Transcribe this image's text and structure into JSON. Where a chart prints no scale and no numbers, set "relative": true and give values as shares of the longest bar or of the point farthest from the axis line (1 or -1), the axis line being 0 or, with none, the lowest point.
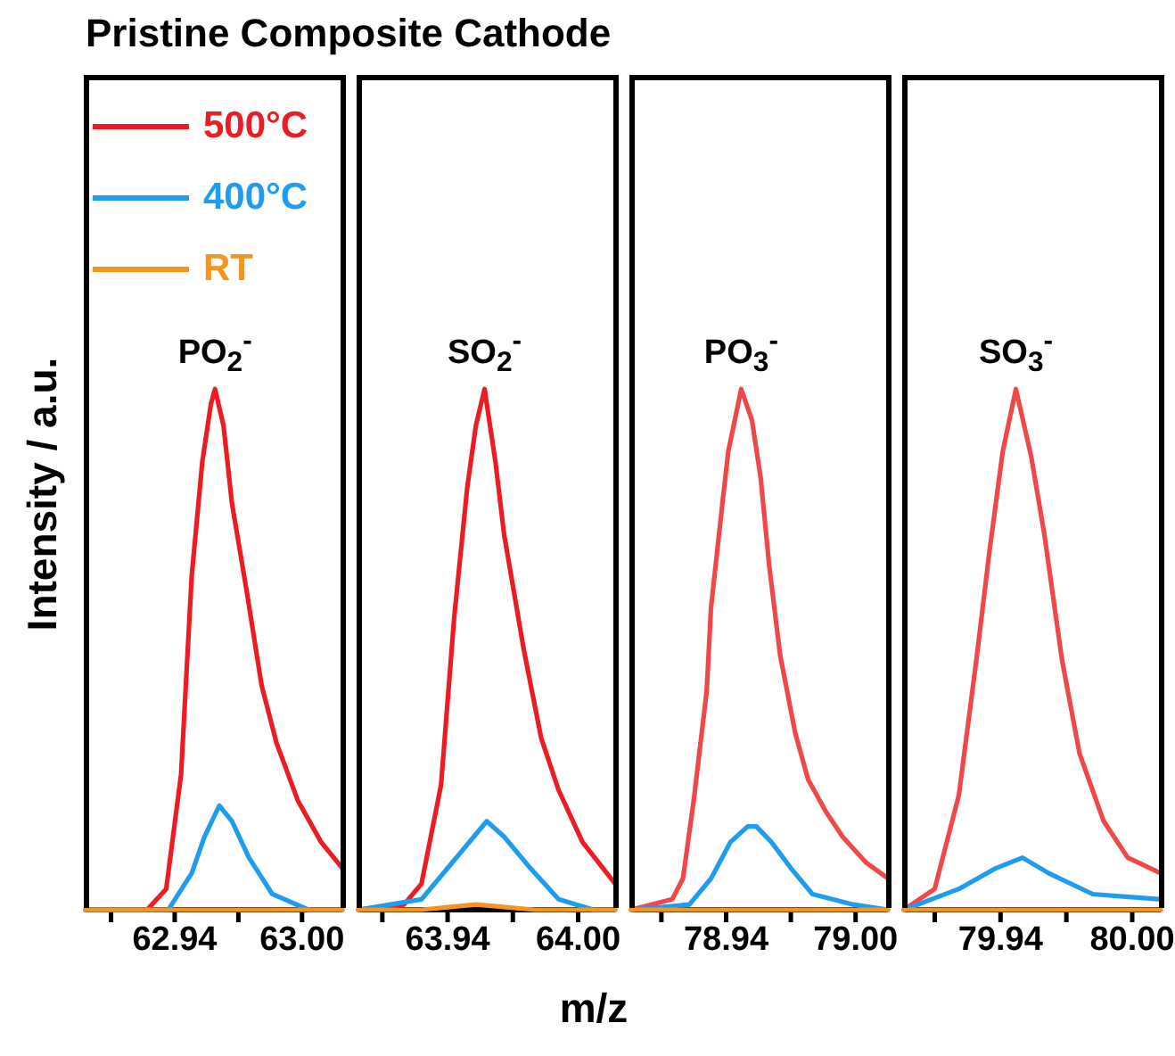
{
  "chart_data": [
    {
      "type": "line",
      "title": "Pristine Composite Cathode",
      "ylabel": "Intensity / a.u.",
      "relative": true,
      "tick_labels": "x",
      "legend": "top left",
      "xlim": [
        62.898,
        63.019
      ],
      "xticks": [
        {
          "value": 62.91,
          "label": null
        },
        62.94,
        {
          "value": 62.97,
          "label": null
        },
        {
          "value": 63,
          "label": "63.00"
        }
      ],
      "annotations": [
        {
          "text": "PO$_{2}$$^{-}$",
          "x": 62.959,
          "y": 1
        }
      ],
      "series": [
        {
          "name": "500°C",
          "color": "#ec1c24",
          "x": [
            62.898,
            62.927,
            62.936,
            62.943,
            62.948,
            62.953,
            62.957,
            62.959,
            62.963,
            62.967,
            62.974,
            62.981,
            62.988,
            62.998,
            63.009,
            63.019
          ],
          "values": [
            0,
            0,
            0.04,
            0.26,
            0.64,
            0.86,
            0.97,
            1,
            0.93,
            0.78,
            0.61,
            0.43,
            0.32,
            0.21,
            0.13,
            0.08
          ]
        },
        {
          "name": "400°C",
          "color": "#1e9cf0",
          "x": [
            62.898,
            62.937,
            62.948,
            62.954,
            62.961,
            62.967,
            62.975,
            62.986,
            63.003,
            63.019
          ],
          "values": [
            0,
            0,
            0.07,
            0.14,
            0.2,
            0.17,
            0.1,
            0.03,
            0,
            0
          ]
        },
        {
          "name": "RT",
          "color": "#f7941d",
          "x": [
            62.898,
            62.96,
            63.019
          ],
          "values": [
            0,
            0,
            0
          ]
        }
      ]
    },
    {
      "type": "line",
      "xlabel": "m/z",
      "relative": true,
      "tick_labels": "x",
      "xlim": [
        63.899,
        64.017
      ],
      "xticks": [
        {
          "value": 63.91,
          "label": null
        },
        63.94,
        {
          "value": 63.97,
          "label": null
        },
        {
          "value": 64,
          "label": "64.00"
        }
      ],
      "annotations": [
        {
          "text": "SO$_{2}$$^{-}$",
          "x": 63.957,
          "y": 1
        }
      ],
      "series": [
        {
          "color": "#ec1c24",
          "x": [
            63.899,
            63.92,
            63.928,
            63.937,
            63.943,
            63.949,
            63.953,
            63.957,
            63.962,
            63.966,
            63.975,
            63.983,
            63.991,
            64.002,
            64.017
          ],
          "values": [
            0,
            0.01,
            0.05,
            0.24,
            0.56,
            0.81,
            0.93,
            1,
            0.86,
            0.72,
            0.5,
            0.33,
            0.23,
            0.13,
            0.05
          ]
        },
        {
          "color": "#1e9cf0",
          "x": [
            63.899,
            63.928,
            63.942,
            63.952,
            63.958,
            63.966,
            63.978,
            63.991,
            64.007,
            64.017
          ],
          "values": [
            0,
            0.02,
            0.09,
            0.14,
            0.17,
            0.14,
            0.08,
            0.02,
            0,
            0
          ]
        },
        {
          "color": "#f7941d",
          "x": [
            63.899,
            63.928,
            63.953,
            63.98,
            64.017
          ],
          "values": [
            0,
            0,
            0.01,
            0,
            0
          ]
        }
      ]
    },
    {
      "type": "line",
      "relative": true,
      "tick_labels": "x",
      "xlim": [
        78.896,
        79.015
      ],
      "xticks": [
        {
          "value": 78.91,
          "label": null
        },
        78.94,
        {
          "value": 78.97,
          "label": null
        },
        {
          "value": 79,
          "label": "79.00"
        }
      ],
      "annotations": [
        {
          "text": "PO$_{3}$$^{-}$",
          "x": 78.947,
          "y": 1
        }
      ],
      "series": [
        {
          "color": "#f04848",
          "x": [
            78.896,
            78.915,
            78.92,
            78.925,
            78.931,
            78.933,
            78.938,
            78.941,
            78.945,
            78.947,
            78.952,
            78.956,
            78.96,
            78.965,
            78.972,
            78.978,
            78.986,
            78.994,
            79.005,
            79.015
          ],
          "values": [
            0,
            0.02,
            0.06,
            0.21,
            0.42,
            0.58,
            0.77,
            0.88,
            0.96,
            1,
            0.94,
            0.83,
            0.66,
            0.49,
            0.34,
            0.25,
            0.19,
            0.14,
            0.09,
            0.06
          ]
        },
        {
          "color": "#1e9cf0",
          "x": [
            78.896,
            78.923,
            78.933,
            78.942,
            78.95,
            78.954,
            78.961,
            78.97,
            78.98,
            78.999,
            79.015
          ],
          "values": [
            0,
            0.01,
            0.06,
            0.13,
            0.16,
            0.16,
            0.13,
            0.08,
            0.03,
            0.01,
            0
          ]
        },
        {
          "color": "#f7941d",
          "x": [
            78.896,
            78.95,
            79.015
          ],
          "values": [
            0,
            0,
            0
          ]
        }
      ]
    },
    {
      "type": "line",
      "relative": true,
      "tick_labels": "x",
      "xlim": [
        79.896,
        80.013
      ],
      "xticks": [
        {
          "value": 79.91,
          "label": null
        },
        79.94,
        {
          "value": 79.97,
          "label": null
        },
        {
          "value": 80,
          "label": "80.00"
        }
      ],
      "annotations": [
        {
          "text": "SO$_{3}$$^{-}$",
          "x": 79.947,
          "y": 1
        }
      ],
      "series": [
        {
          "color": "#f04848",
          "x": [
            79.896,
            79.91,
            79.921,
            79.929,
            79.935,
            79.941,
            79.947,
            79.954,
            79.96,
            79.968,
            79.976,
            79.987,
            79.998,
            80.013
          ],
          "values": [
            0,
            0.04,
            0.22,
            0.48,
            0.69,
            0.88,
            1,
            0.87,
            0.72,
            0.48,
            0.3,
            0.17,
            0.1,
            0.07
          ]
        },
        {
          "color": "#1e9cf0",
          "x": [
            79.896,
            79.921,
            79.938,
            79.95,
            79.962,
            79.982,
            80.013
          ],
          "values": [
            0,
            0.04,
            0.08,
            0.1,
            0.07,
            0.03,
            0.02
          ]
        },
        {
          "color": "#f7941d",
          "x": [
            79.896,
            79.95,
            80.013
          ],
          "values": [
            0,
            0,
            0
          ]
        }
      ]
    }
  ]
}
